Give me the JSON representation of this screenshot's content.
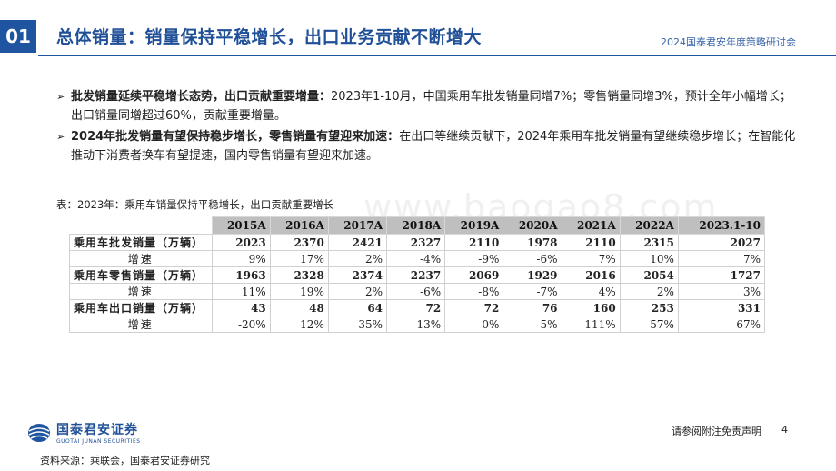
{
  "header": {
    "section_number": "01",
    "title": "总体销量：销量保持平稳增长，出口业务贡献不断增大",
    "conference": "2024国泰君安年度策略研讨会"
  },
  "bullets": [
    {
      "bold": "批发销量延续平稳增长态势，出口贡献重要增量：",
      "text": "2023年1-10月，中国乘用车批发销量同增7%；零售销量同增3%，预计全年小幅增长；出口销量同增超过60%，贡献重要增量。"
    },
    {
      "bold": "2024年批发销量有望保持稳步增长，零售销量有望迎来加速：",
      "text": "在出口等继续贡献下，2024年乘用车批发销量有望继续稳步增长；在智能化推动下消费者换车有望提速，国内零售销量有望迎来加速。"
    }
  ],
  "table": {
    "caption": "表：2023年：乘用车销量保持平稳增长，出口贡献重要增长",
    "columns": [
      "2015A",
      "2016A",
      "2017A",
      "2018A",
      "2019A",
      "2020A",
      "2021A",
      "2022A",
      "2023.1-10"
    ],
    "rows": [
      {
        "label": "乘用车批发销量（万辆）",
        "values": [
          "2023",
          "2370",
          "2421",
          "2327",
          "2110",
          "1978",
          "2110",
          "2315",
          "2027"
        ]
      },
      {
        "label": "增速",
        "values": [
          "9%",
          "17%",
          "2%",
          "-4%",
          "-9%",
          "-6%",
          "7%",
          "10%",
          "7%"
        ]
      },
      {
        "label": "乘用车零售销量（万辆）",
        "values": [
          "1963",
          "2328",
          "2374",
          "2237",
          "2069",
          "1929",
          "2016",
          "2054",
          "1727"
        ]
      },
      {
        "label": "增速",
        "values": [
          "11%",
          "19%",
          "2%",
          "-6%",
          "-8%",
          "-7%",
          "4%",
          "2%",
          "3%"
        ]
      },
      {
        "label": "乘用车出口销量（万辆）",
        "values": [
          "43",
          "48",
          "64",
          "72",
          "72",
          "76",
          "160",
          "253",
          "331"
        ]
      },
      {
        "label": "增速",
        "values": [
          "-20%",
          "12%",
          "35%",
          "13%",
          "0%",
          "5%",
          "111%",
          "57%",
          "67%"
        ]
      }
    ]
  },
  "watermark": "www.baogao8.com",
  "footer": {
    "logo_cn": "国泰君安证券",
    "logo_en": "GUOTAI JUNAN SECURITIES",
    "disclaimer": "请参阅附注免责声明",
    "page": "4",
    "source": "资料来源：乘联会，国泰君安证券研究"
  },
  "colors": {
    "brand_blue": "#1f55a0",
    "header_gray": "#bfbfbf"
  }
}
